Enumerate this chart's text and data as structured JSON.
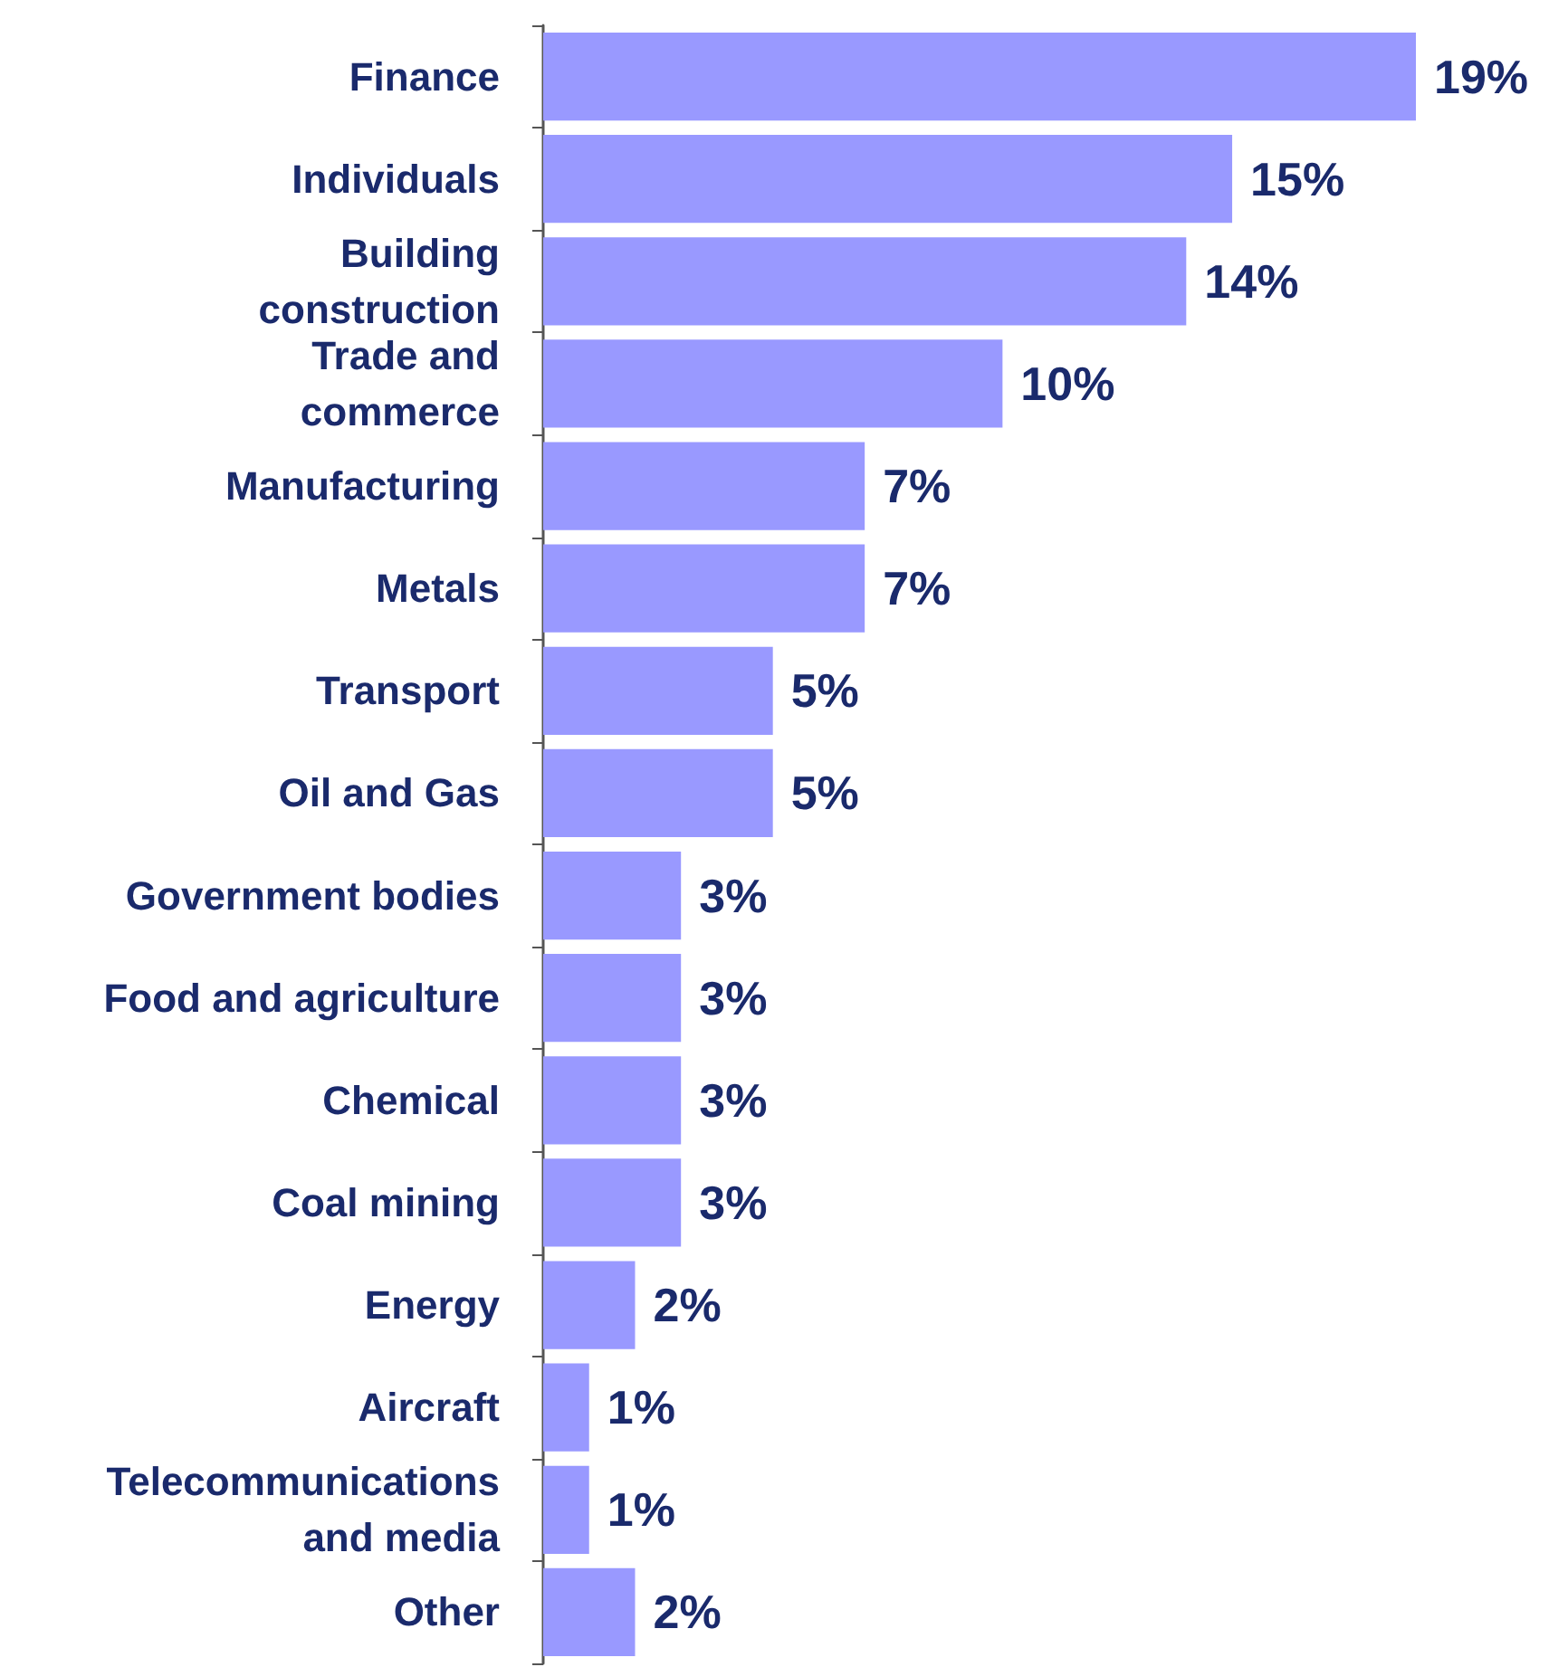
{
  "chart_data": {
    "type": "bar",
    "orientation": "horizontal",
    "categories": [
      "Finance",
      "Individuals",
      "Building\nconstruction",
      "Trade and\ncommerce",
      "Manufacturing",
      "Metals",
      "Transport",
      "Oil and Gas",
      "Government bodies",
      "Food and agriculture",
      "Chemical",
      "Coal mining",
      "Energy",
      "Aircraft",
      "Telecommunications\nand media",
      "Other"
    ],
    "values": [
      19,
      15,
      14,
      10,
      7,
      7,
      5,
      5,
      3,
      3,
      3,
      3,
      2,
      1,
      1,
      2
    ],
    "value_labels": [
      "19%",
      "15%",
      "14%",
      "10%",
      "7%",
      "7%",
      "5%",
      "5%",
      "3%",
      "3%",
      "3%",
      "3%",
      "2%",
      "1%",
      "1%",
      "2%"
    ],
    "color": "#9999ff"
  }
}
